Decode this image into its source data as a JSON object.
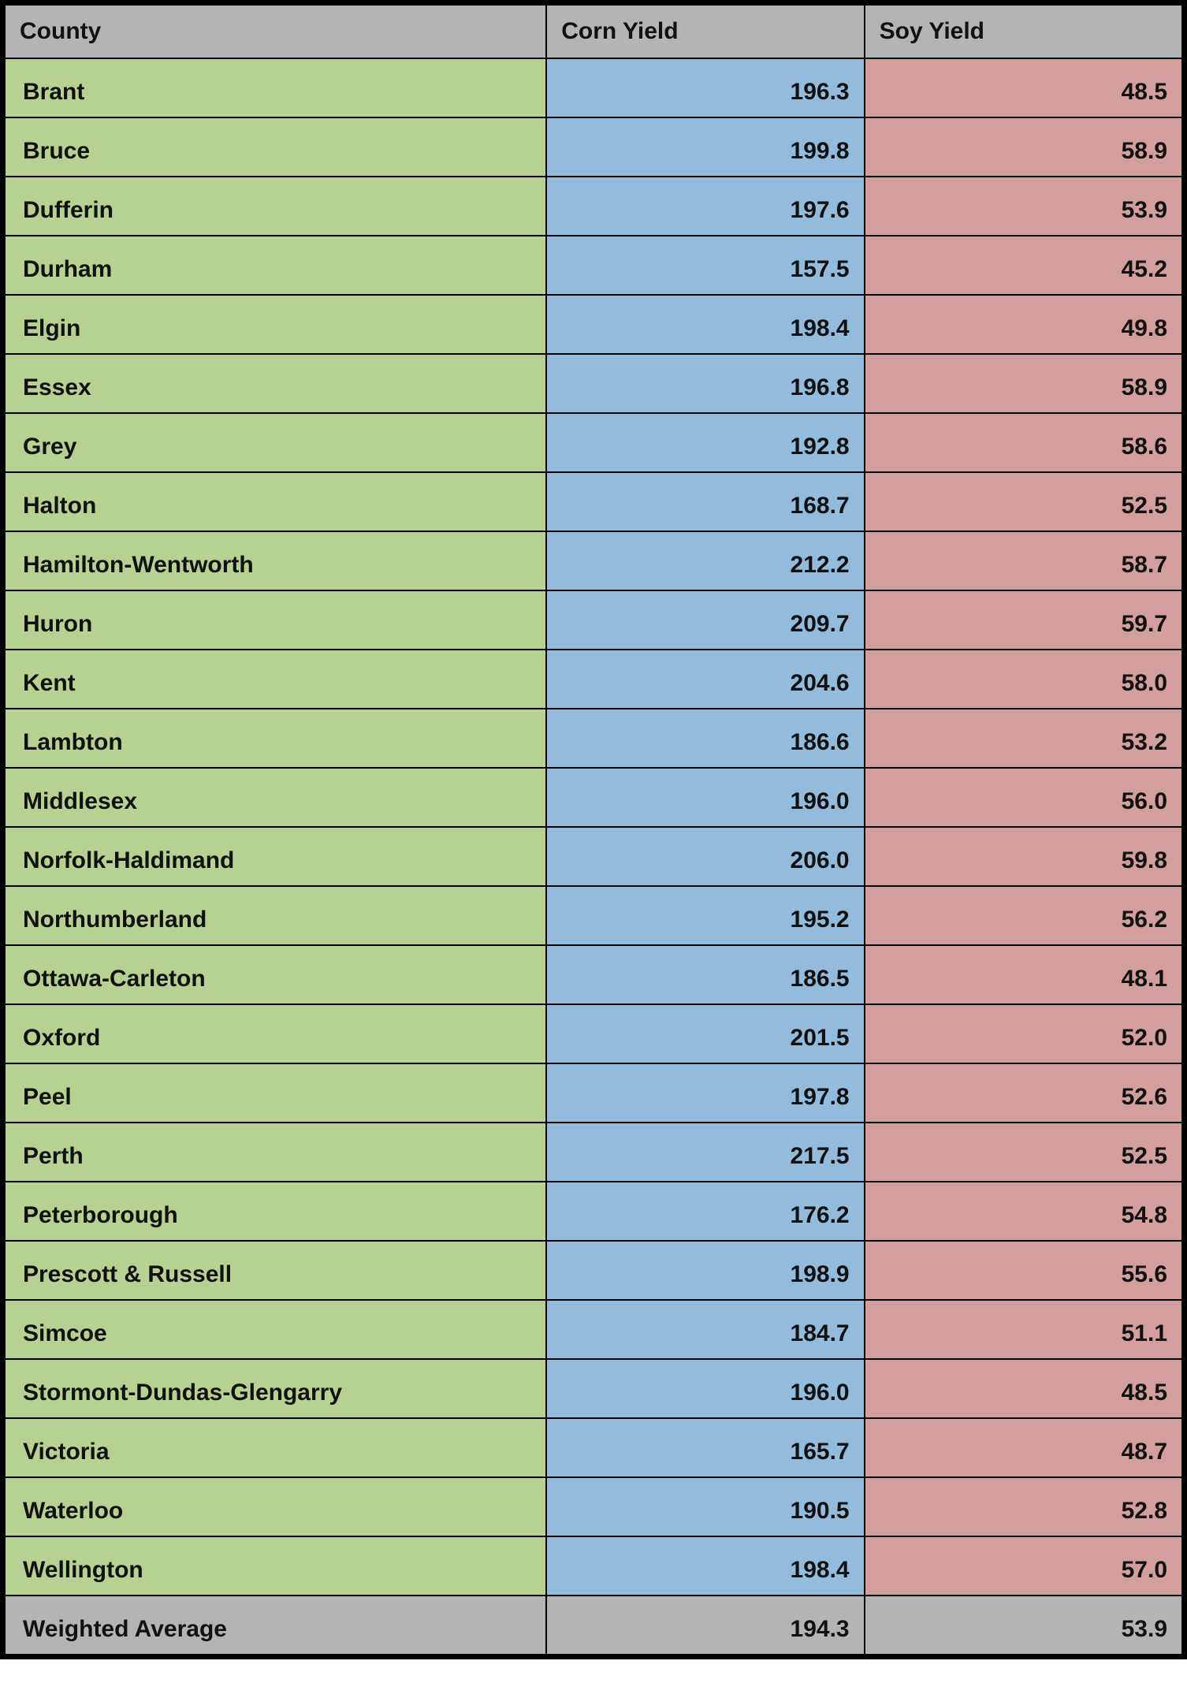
{
  "colors": {
    "header_bg": "#b4b4b4",
    "county_bg": "#b6d192",
    "corn_bg": "#93bbdc",
    "soy_bg": "#d29f9c",
    "footer_bg": "#b4b4b4",
    "border": "#000000",
    "text": "#111111"
  },
  "columns": [
    "County",
    "Corn Yield",
    "Soy Yield"
  ],
  "rows": [
    {
      "county": "Brant",
      "corn": "196.3",
      "soy": "48.5"
    },
    {
      "county": "Bruce",
      "corn": "199.8",
      "soy": "58.9"
    },
    {
      "county": "Dufferin",
      "corn": "197.6",
      "soy": "53.9"
    },
    {
      "county": "Durham",
      "corn": "157.5",
      "soy": "45.2"
    },
    {
      "county": "Elgin",
      "corn": "198.4",
      "soy": "49.8"
    },
    {
      "county": "Essex",
      "corn": "196.8",
      "soy": "58.9"
    },
    {
      "county": "Grey",
      "corn": "192.8",
      "soy": "58.6"
    },
    {
      "county": "Halton",
      "corn": "168.7",
      "soy": "52.5"
    },
    {
      "county": "Hamilton-Wentworth",
      "corn": "212.2",
      "soy": "58.7"
    },
    {
      "county": "Huron",
      "corn": "209.7",
      "soy": "59.7"
    },
    {
      "county": "Kent",
      "corn": "204.6",
      "soy": "58.0"
    },
    {
      "county": "Lambton",
      "corn": "186.6",
      "soy": "53.2"
    },
    {
      "county": "Middlesex",
      "corn": "196.0",
      "soy": "56.0"
    },
    {
      "county": "Norfolk-Haldimand",
      "corn": "206.0",
      "soy": "59.8"
    },
    {
      "county": "Northumberland",
      "corn": "195.2",
      "soy": "56.2"
    },
    {
      "county": "Ottawa-Carleton",
      "corn": "186.5",
      "soy": "48.1"
    },
    {
      "county": "Oxford",
      "corn": "201.5",
      "soy": "52.0"
    },
    {
      "county": "Peel",
      "corn": "197.8",
      "soy": "52.6"
    },
    {
      "county": "Perth",
      "corn": "217.5",
      "soy": "52.5"
    },
    {
      "county": "Peterborough",
      "corn": "176.2",
      "soy": "54.8"
    },
    {
      "county": "Prescott & Russell",
      "corn": "198.9",
      "soy": "55.6"
    },
    {
      "county": "Simcoe",
      "corn": "184.7",
      "soy": "51.1"
    },
    {
      "county": "Stormont-Dundas-Glengarry",
      "corn": "196.0",
      "soy": "48.5"
    },
    {
      "county": "Victoria",
      "corn": "165.7",
      "soy": "48.7"
    },
    {
      "county": "Waterloo",
      "corn": "190.5",
      "soy": "52.8"
    },
    {
      "county": "Wellington",
      "corn": "198.4",
      "soy": "57.0"
    }
  ],
  "footer": {
    "label": "Weighted Average",
    "corn": "194.3",
    "soy": "53.9"
  }
}
